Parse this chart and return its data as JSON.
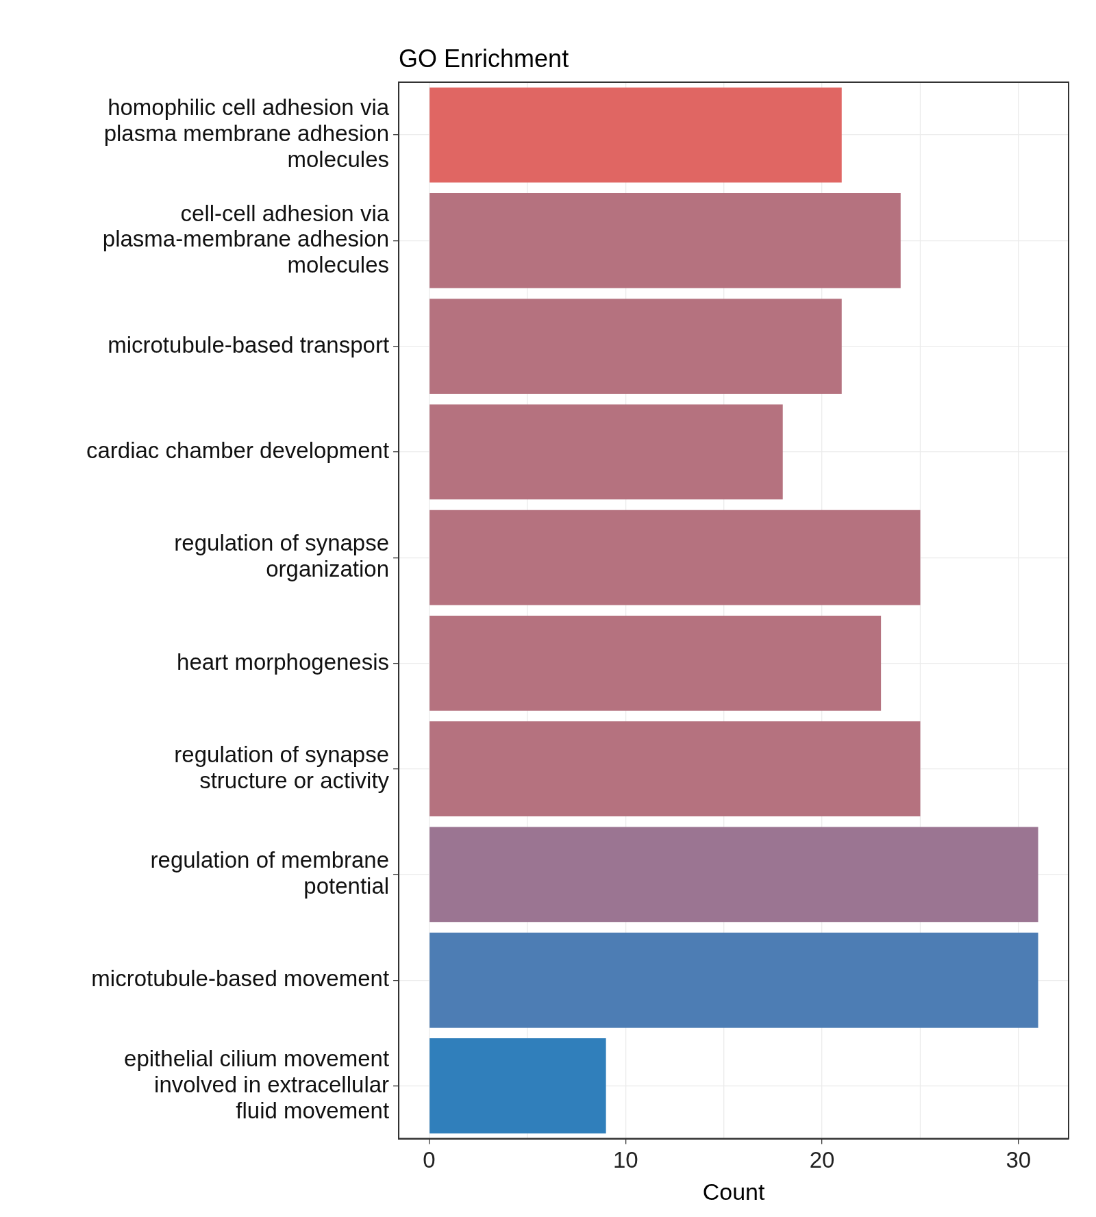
{
  "chart_data": {
    "type": "bar",
    "orientation": "horizontal",
    "title": "GO Enrichment",
    "xlabel": "Count",
    "categories": [
      "homophilic cell adhesion via plasma membrane adhesion molecules",
      "cell-cell adhesion via plasma-membrane adhesion molecules",
      "microtubule-based transport",
      "cardiac chamber development",
      "regulation of synapse organization",
      "heart morphogenesis",
      "regulation of synapse structure or activity",
      "regulation of membrane potential",
      "microtubule-based movement",
      "epithelial cilium movement involved in extracellular fluid movement"
    ],
    "values": [
      21,
      24,
      21,
      18,
      25,
      23,
      25,
      31,
      31,
      9
    ],
    "colors": [
      "#e06663",
      "#b5727f",
      "#b5727f",
      "#b5727f",
      "#b5727f",
      "#b5727f",
      "#b5727f",
      "#9b7592",
      "#4d7db4",
      "#307fbb"
    ],
    "xlim": [
      -1.55,
      32.55
    ],
    "xticks": [
      0,
      10,
      20,
      30
    ],
    "grid": true,
    "legend": false
  }
}
